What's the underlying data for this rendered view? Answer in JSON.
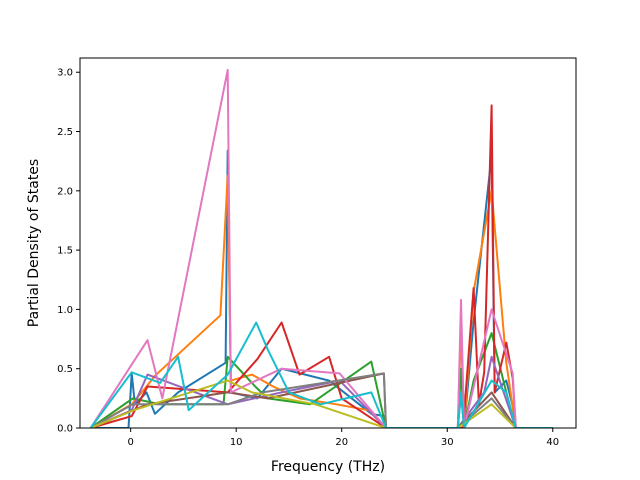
{
  "chart_data": {
    "type": "line",
    "title": "",
    "xlabel": "Frequency (THz)",
    "ylabel": "Partial Density of States",
    "xlim": [
      -4.8,
      42.2
    ],
    "ylim": [
      0.0,
      3.12
    ],
    "xticks": [
      0,
      10,
      20,
      30,
      40
    ],
    "xtick_labels": [
      "0",
      "10",
      "20",
      "30",
      "40"
    ],
    "yticks": [
      0.0,
      0.5,
      1.0,
      1.5,
      2.0,
      2.5,
      3.0
    ],
    "ytick_labels": [
      "0.0",
      "0.5",
      "1.0",
      "1.5",
      "2.0",
      "2.5",
      "3.0"
    ],
    "grid": false,
    "legend": "none",
    "series": [
      {
        "color": "#1f77b4",
        "points": [
          [
            -3.8,
            0
          ],
          [
            -0.2,
            0
          ],
          [
            0.1,
            0.46
          ],
          [
            0.4,
            0.2
          ],
          [
            1.5,
            0.3
          ],
          [
            2.3,
            0.12
          ],
          [
            4.5,
            0.3
          ],
          [
            9.0,
            0.55
          ],
          [
            9.2,
            2.34
          ],
          [
            9.5,
            0.3
          ],
          [
            12.0,
            0.25
          ],
          [
            14.3,
            0.5
          ],
          [
            18.8,
            0.4
          ],
          [
            22.8,
            0.12
          ],
          [
            24.0,
            0.1
          ],
          [
            24.2,
            0
          ],
          [
            31.0,
            0
          ],
          [
            31.3,
            0.3
          ],
          [
            31.6,
            0
          ],
          [
            32.5,
            0.9
          ],
          [
            34.2,
            2.3
          ],
          [
            34.5,
            0.3
          ],
          [
            35.6,
            0.4
          ],
          [
            36.3,
            0.15
          ],
          [
            36.5,
            0
          ],
          [
            40,
            0
          ]
        ]
      },
      {
        "color": "#ff7f0e",
        "points": [
          [
            -3.8,
            0
          ],
          [
            0.1,
            0.2
          ],
          [
            1.5,
            0.35
          ],
          [
            2.3,
            0.44
          ],
          [
            8.5,
            0.95
          ],
          [
            9.2,
            2.13
          ],
          [
            9.5,
            0.4
          ],
          [
            11.5,
            0.45
          ],
          [
            13.5,
            0.35
          ],
          [
            16.0,
            0.25
          ],
          [
            19.5,
            0.2
          ],
          [
            22.5,
            0.15
          ],
          [
            24.2,
            0
          ],
          [
            31.0,
            0
          ],
          [
            31.3,
            0.85
          ],
          [
            31.6,
            0
          ],
          [
            32.5,
            1.15
          ],
          [
            34.2,
            2.0
          ],
          [
            35.6,
            0.55
          ],
          [
            36.5,
            0
          ],
          [
            40,
            0
          ]
        ]
      },
      {
        "color": "#2ca02c",
        "points": [
          [
            -3.8,
            0
          ],
          [
            0.2,
            0.25
          ],
          [
            2.8,
            0.2
          ],
          [
            8.8,
            0.2
          ],
          [
            9.2,
            0.6
          ],
          [
            11.8,
            0.35
          ],
          [
            13.0,
            0.25
          ],
          [
            17.0,
            0.2
          ],
          [
            22.8,
            0.56
          ],
          [
            24.2,
            0
          ],
          [
            31.0,
            0
          ],
          [
            31.3,
            0.5
          ],
          [
            31.6,
            0
          ],
          [
            32.5,
            0.4
          ],
          [
            34.2,
            0.8
          ],
          [
            35.6,
            0.3
          ],
          [
            36.5,
            0
          ],
          [
            40,
            0
          ]
        ]
      },
      {
        "color": "#d62728",
        "points": [
          [
            -3.8,
            0
          ],
          [
            0.1,
            0.1
          ],
          [
            1.6,
            0.35
          ],
          [
            9.2,
            0.3
          ],
          [
            12.0,
            0.58
          ],
          [
            14.3,
            0.89
          ],
          [
            16.0,
            0.45
          ],
          [
            18.8,
            0.6
          ],
          [
            20.0,
            0.25
          ],
          [
            24.2,
            0
          ],
          [
            31.5,
            0
          ],
          [
            32.5,
            1.18
          ],
          [
            33.0,
            0.2
          ],
          [
            33.5,
            0.47
          ],
          [
            34.2,
            2.72
          ],
          [
            34.5,
            0.3
          ],
          [
            35.6,
            0.72
          ],
          [
            36.2,
            0.42
          ],
          [
            36.5,
            0
          ],
          [
            40,
            0
          ]
        ]
      },
      {
        "color": "#9467bd",
        "points": [
          [
            -3.8,
            0
          ],
          [
            0.1,
            0.15
          ],
          [
            1.6,
            0.45
          ],
          [
            9.2,
            0.2
          ],
          [
            14.3,
            0.3
          ],
          [
            19.8,
            0.4
          ],
          [
            24.2,
            0
          ],
          [
            31.0,
            0
          ],
          [
            33.5,
            0.3
          ],
          [
            34.2,
            0.6
          ],
          [
            36.5,
            0
          ],
          [
            40,
            0
          ]
        ]
      },
      {
        "color": "#8c564b",
        "points": [
          [
            -3.8,
            0
          ],
          [
            1.6,
            0.2
          ],
          [
            9.2,
            0.3
          ],
          [
            13.0,
            0.25
          ],
          [
            24.0,
            0.46
          ],
          [
            24.2,
            0
          ],
          [
            31.0,
            0
          ],
          [
            34.2,
            0.3
          ],
          [
            36.5,
            0
          ],
          [
            40,
            0
          ]
        ]
      },
      {
        "color": "#e377c2",
        "points": [
          [
            -3.8,
            0
          ],
          [
            1.6,
            0.74
          ],
          [
            3.0,
            0.25
          ],
          [
            9.2,
            3.02
          ],
          [
            9.5,
            0.3
          ],
          [
            14.3,
            0.5
          ],
          [
            19.8,
            0.46
          ],
          [
            24.2,
            0
          ],
          [
            31.0,
            0
          ],
          [
            31.3,
            1.08
          ],
          [
            31.6,
            0
          ],
          [
            34.2,
            1.0
          ],
          [
            36.2,
            0.46
          ],
          [
            36.5,
            0
          ],
          [
            40,
            0
          ]
        ]
      },
      {
        "color": "#7f7f7f",
        "points": [
          [
            -3.8,
            0
          ],
          [
            0.2,
            0.2
          ],
          [
            9.2,
            0.2
          ],
          [
            12.5,
            0.3
          ],
          [
            24.0,
            0.46
          ],
          [
            24.2,
            0
          ],
          [
            31.0,
            0
          ],
          [
            34.2,
            0.25
          ],
          [
            36.5,
            0
          ],
          [
            40,
            0
          ]
        ]
      },
      {
        "color": "#bcbd22",
        "points": [
          [
            -3.8,
            0
          ],
          [
            0.3,
            0.15
          ],
          [
            9.2,
            0.4
          ],
          [
            11.5,
            0.3
          ],
          [
            17.5,
            0.2
          ],
          [
            24.2,
            0
          ],
          [
            31.0,
            0
          ],
          [
            34.2,
            0.2
          ],
          [
            36.5,
            0
          ],
          [
            40,
            0
          ]
        ]
      },
      {
        "color": "#17becf",
        "points": [
          [
            -3.8,
            0
          ],
          [
            0.1,
            0.47
          ],
          [
            2.8,
            0.38
          ],
          [
            4.5,
            0.6
          ],
          [
            5.5,
            0.15
          ],
          [
            9.2,
            0.45
          ],
          [
            11.9,
            0.89
          ],
          [
            13.0,
            0.66
          ],
          [
            15.0,
            0.3
          ],
          [
            18.0,
            0.2
          ],
          [
            22.8,
            0.3
          ],
          [
            24.2,
            0
          ],
          [
            31.0,
            0
          ],
          [
            31.3,
            0.3
          ],
          [
            31.6,
            0
          ],
          [
            34.2,
            0.4
          ],
          [
            35.6,
            0.3
          ],
          [
            36.5,
            0
          ],
          [
            40,
            0
          ]
        ]
      }
    ]
  }
}
